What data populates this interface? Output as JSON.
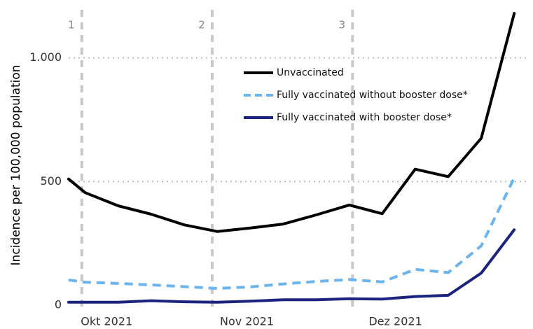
{
  "chart_data": {
    "type": "line",
    "ylabel": "Incidence per 100,000 population",
    "xlabel": "",
    "title": "",
    "ylim": [
      0,
      1200
    ],
    "y_ticks": [
      {
        "value": 0,
        "label": "0"
      },
      {
        "value": 500,
        "label": "500"
      },
      {
        "value": 1000,
        "label": "1.000"
      }
    ],
    "x_ticks": [
      {
        "x": 2.3,
        "label": "Okt 2021"
      },
      {
        "x": 10.8,
        "label": "Nov 2021"
      },
      {
        "x": 19.8,
        "label": "Dez 2021"
      }
    ],
    "xlim": [
      0,
      27.5
    ],
    "grid": "horizontal dotted",
    "legend_position": "top-center",
    "markers": [
      {
        "x": 0.8,
        "label": "1"
      },
      {
        "x": 8.7,
        "label": "2"
      },
      {
        "x": 17.2,
        "label": "3"
      }
    ],
    "x": [
      0,
      1,
      3,
      5,
      7,
      9,
      11,
      13,
      15,
      17,
      19,
      21,
      23,
      25,
      27
    ],
    "series": [
      {
        "name": "Unvaccinated",
        "color": "#000000",
        "dash": "solid",
        "values": [
          510,
          455,
          402,
          368,
          325,
          298,
          312,
          328,
          365,
          405,
          370,
          550,
          520,
          675,
          1180
        ]
      },
      {
        "name": "Fully vaccinated without booster dose*",
        "color": "#6cb4ee",
        "dash": "dashed",
        "values": [
          102,
          93,
          88,
          82,
          75,
          68,
          74,
          86,
          96,
          104,
          94,
          145,
          132,
          240,
          515
        ]
      },
      {
        "name": "Fully vaccinated with booster dose*",
        "color": "#1a237e",
        "dash": "solid",
        "values": [
          12,
          12,
          12,
          18,
          14,
          12,
          16,
          22,
          22,
          26,
          25,
          35,
          40,
          130,
          305
        ]
      }
    ]
  }
}
